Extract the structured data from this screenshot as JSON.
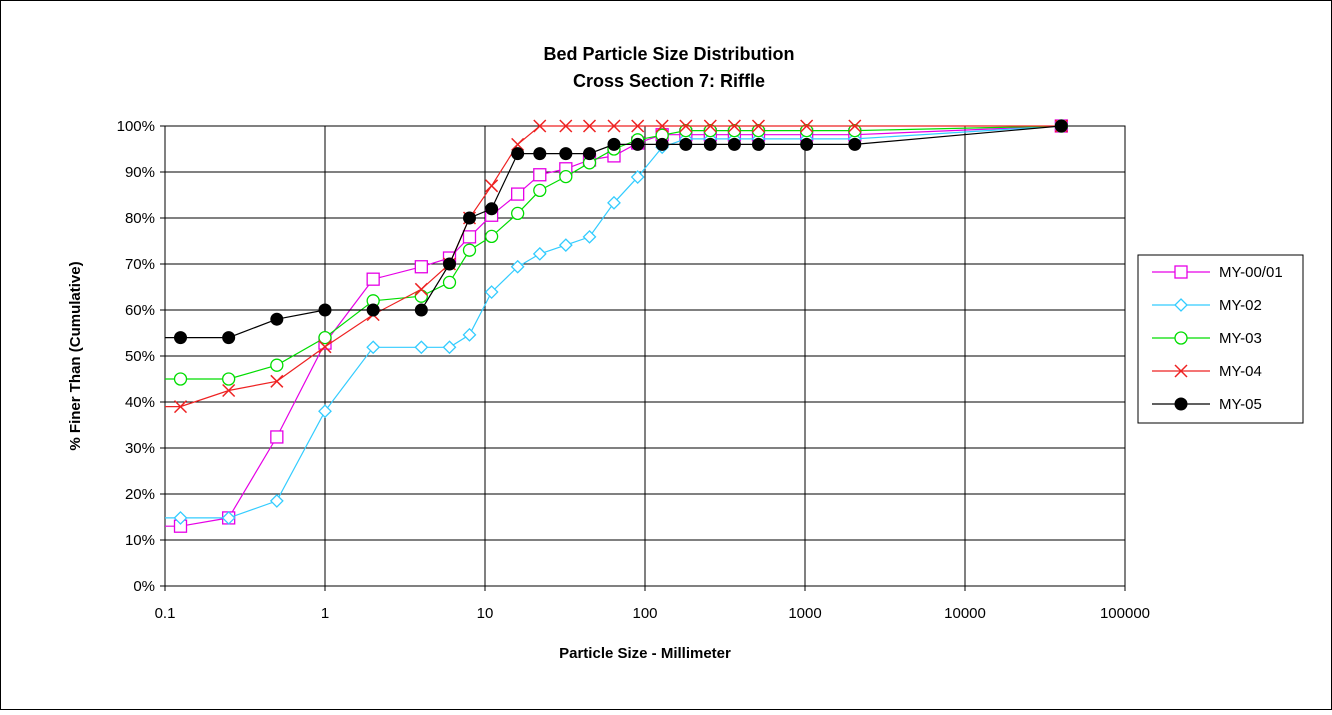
{
  "chart_data": {
    "type": "line",
    "title": "Bed Particle Size Distribution",
    "subtitle": "Cross Section 7: Riffle",
    "xlabel": "Particle Size - Millimeter",
    "ylabel": "% Finer Than (Cumulative)",
    "x_scale": "log",
    "xlim": [
      0.1,
      100000
    ],
    "ylim": [
      0,
      100
    ],
    "x_ticks": [
      "0.1",
      "1",
      "10",
      "100",
      "1000",
      "10000",
      "100000"
    ],
    "y_ticks": [
      "0%",
      "10%",
      "20%",
      "30%",
      "40%",
      "50%",
      "60%",
      "70%",
      "80%",
      "90%",
      "100%"
    ],
    "grid": true,
    "legend_position": "right",
    "x_left_extension": 0.1,
    "series": [
      {
        "name": "MY-00/01",
        "color": "#e600e6",
        "marker": "square",
        "x": [
          0.125,
          0.25,
          0.5,
          1,
          2,
          4,
          6,
          8,
          11,
          16,
          22,
          32,
          45,
          64,
          90,
          128,
          180,
          256,
          362,
          512,
          1024,
          2048,
          40000
        ],
        "y": [
          13,
          14.8,
          32.4,
          52.8,
          66.7,
          69.4,
          71.3,
          75.9,
          80.6,
          85.2,
          89.4,
          90.7,
          92.6,
          93.5,
          96.3,
          98.1,
          98.1,
          98.1,
          98.1,
          98.1,
          98.1,
          98.1,
          100
        ]
      },
      {
        "name": "MY-02",
        "color": "#33ccff",
        "marker": "diamond",
        "x": [
          0.125,
          0.25,
          0.5,
          1,
          2,
          4,
          6,
          8,
          11,
          16,
          22,
          32,
          45,
          64,
          90,
          128,
          180,
          256,
          362,
          512,
          1024,
          2048,
          40000
        ],
        "y": [
          14.8,
          14.8,
          18.5,
          38.0,
          51.9,
          51.9,
          51.9,
          54.6,
          63.9,
          69.4,
          72.2,
          74.1,
          75.9,
          83.3,
          88.9,
          95.4,
          97.2,
          97.2,
          97.2,
          97.2,
          97.2,
          97.2,
          100
        ]
      },
      {
        "name": "MY-03",
        "color": "#00dd00",
        "marker": "circle-open",
        "x": [
          0.125,
          0.25,
          0.5,
          1,
          2,
          4,
          6,
          8,
          11,
          16,
          22,
          32,
          45,
          64,
          90,
          128,
          180,
          256,
          362,
          512,
          1024,
          2048,
          40000
        ],
        "y": [
          45,
          45,
          48,
          54,
          62,
          63,
          66,
          73,
          76,
          81,
          86,
          89,
          92,
          95,
          97,
          98,
          99,
          99,
          99,
          99,
          99,
          99,
          100
        ]
      },
      {
        "name": "MY-04",
        "color": "#ee2222",
        "marker": "x",
        "x": [
          0.125,
          0.25,
          0.5,
          1,
          2,
          4,
          6,
          8,
          11,
          16,
          22,
          32,
          45,
          64,
          90,
          128,
          180,
          256,
          362,
          512,
          1024,
          2048,
          40000
        ],
        "y": [
          39,
          42.5,
          44.5,
          52,
          59,
          64.5,
          70,
          80,
          87,
          96,
          100,
          100,
          100,
          100,
          100,
          100,
          100,
          100,
          100,
          100,
          100,
          100,
          100
        ]
      },
      {
        "name": "MY-05",
        "color": "#000000",
        "marker": "circle-filled",
        "x": [
          0.125,
          0.25,
          0.5,
          1,
          2,
          4,
          6,
          8,
          11,
          16,
          22,
          32,
          45,
          64,
          90,
          128,
          180,
          256,
          362,
          512,
          1024,
          2048,
          40000
        ],
        "y": [
          54,
          54,
          58,
          60,
          60,
          60,
          70,
          80,
          82,
          94,
          94,
          94,
          94,
          96,
          96,
          96,
          96,
          96,
          96,
          96,
          96,
          96,
          100
        ]
      }
    ]
  }
}
